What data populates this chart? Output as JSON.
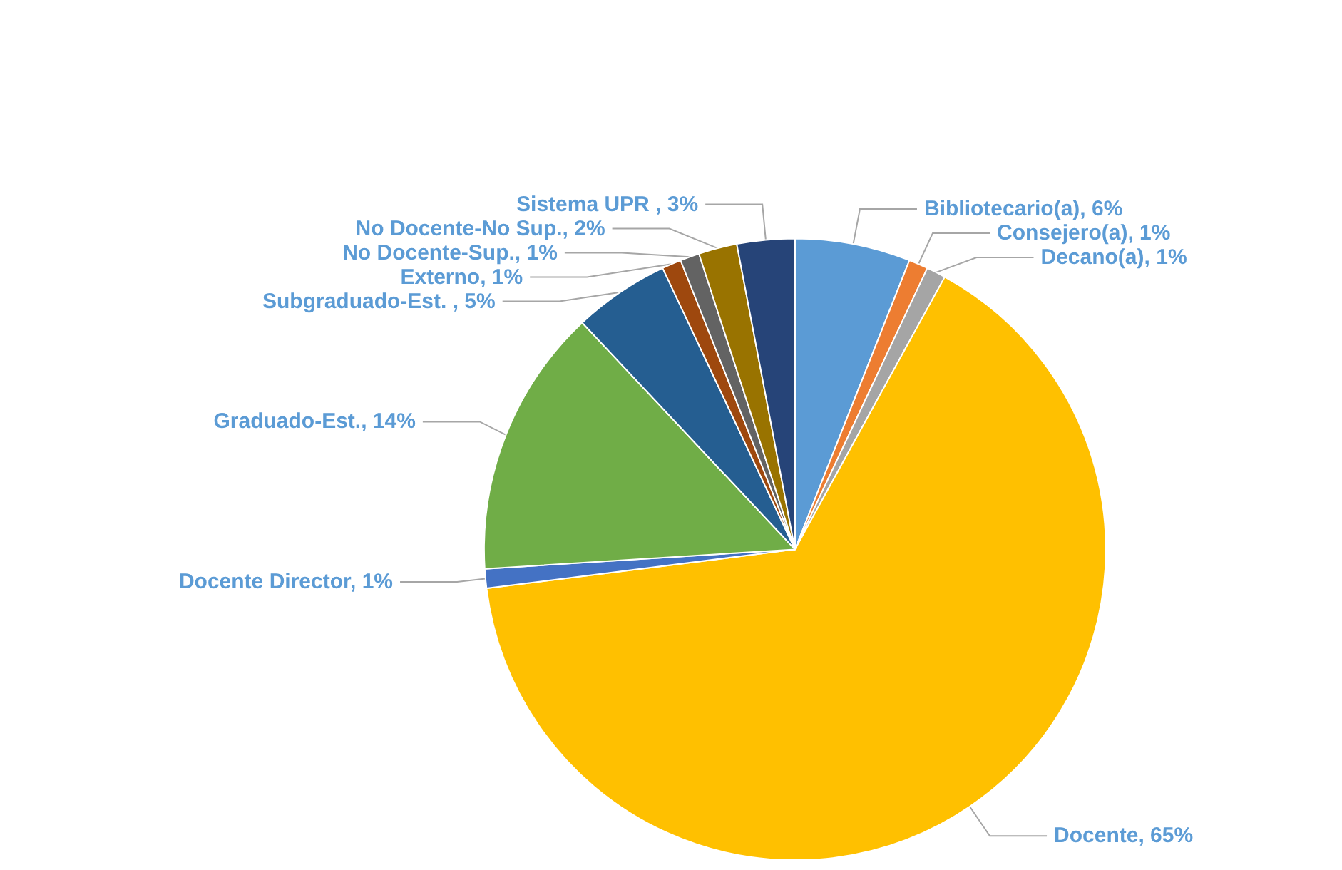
{
  "chart_data": {
    "type": "pie",
    "categories": [
      "Bibliotecario(a)",
      "Consejero(a)",
      "Decano(a)",
      "Docente",
      "Docente Director",
      "Graduado-Est.",
      "Subgraduado-Est. ",
      "Externo",
      "No Docente-Sup.",
      "No Docente-No Sup.",
      "Sistema UPR "
    ],
    "values": [
      6,
      1,
      1,
      65,
      1,
      14,
      5,
      1,
      1,
      2,
      3
    ],
    "colors": [
      "#5b9bd5",
      "#ed7d31",
      "#a5a5a5",
      "#ffc000",
      "#4472c4",
      "#70ad47",
      "#255e91",
      "#9e480e",
      "#636363",
      "#997300",
      "#264478"
    ],
    "value_labels": [
      "6%",
      "1%",
      "1%",
      "65%",
      "1%",
      "14%",
      "5%",
      "1%",
      "1%",
      "2%",
      "3%"
    ],
    "legend": false
  }
}
